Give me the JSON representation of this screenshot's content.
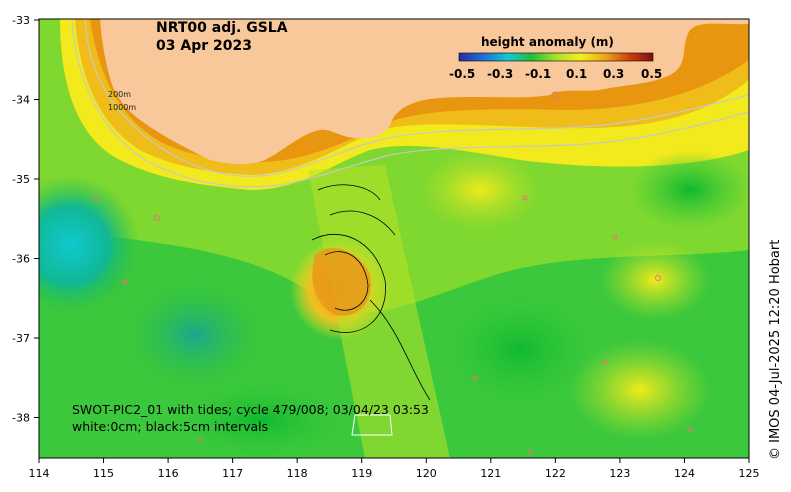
{
  "title": {
    "line1": "NRT00 adj. GSLA",
    "line2": "03 Apr 2023"
  },
  "colorbar": {
    "title": "height anomaly (m)",
    "ticks": [
      "-0.5",
      "-0.3",
      "-0.1",
      "0.1",
      "0.3",
      "0.5"
    ],
    "range": [
      -0.5,
      0.5
    ],
    "colors": [
      "#2a2aa0",
      "#1f6fd8",
      "#10c8d8",
      "#1fbf3a",
      "#a8e02a",
      "#f2ef1a",
      "#f0a818",
      "#d0400f",
      "#801010"
    ]
  },
  "axes": {
    "lon_ticks": [
      "114",
      "115",
      "116",
      "117",
      "118",
      "119",
      "120",
      "121",
      "122",
      "123",
      "124",
      "125"
    ],
    "lat_ticks": [
      "-33",
      "-34",
      "-35",
      "-36",
      "-37",
      "-38"
    ]
  },
  "depth_labels": {
    "shallow": "200m",
    "deep": "1000m"
  },
  "swot": {
    "line1": "SWOT-PIC2_01 with tides; cycle 479/008; 03/04/23 03:53",
    "line2": "white:0cm; black:5cm intervals"
  },
  "credit": "© IMOS 04-Jul-2025 12:20 Hobart",
  "land_color": "#f9c89a"
}
